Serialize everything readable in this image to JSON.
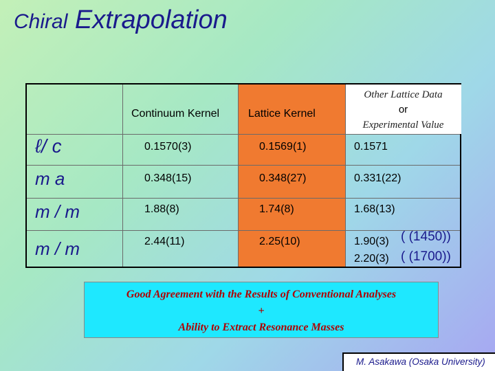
{
  "title": {
    "word1": "Chiral",
    "word2": "Extrapolation"
  },
  "table": {
    "headers": {
      "continuum": "Continuum Kernel",
      "lattice": "Lattice Kernel",
      "other_line1": "Other Lattice Data",
      "other_line2": "or",
      "other_line3": "Experimental Value"
    },
    "row_labels": [
      {
        "text": "ℓ/ c"
      },
      {
        "text": "m a"
      },
      {
        "text": "m / m"
      },
      {
        "text": "m / m"
      }
    ],
    "rows": [
      {
        "continuum": "0.1570(3)",
        "lattice": "0.1569(1)",
        "other": "0.1571"
      },
      {
        "continuum": "0.348(15)",
        "lattice": "0.348(27)",
        "other": "0.331(22)"
      },
      {
        "continuum": "1.88(8)",
        "lattice": "1.74(8)",
        "other": "1.68(13)"
      },
      {
        "continuum": "2.44(11)",
        "lattice": "2.25(10)",
        "other_1": "1.90(3)",
        "other_2": "2.20(3)",
        "extra_1": "( (1450))",
        "extra_2": "( (1700))"
      }
    ]
  },
  "result_box": {
    "line1": "Good Agreement with the Results of Conventional Analyses",
    "line2": "+",
    "line3": "Ability to Extract Resonance Masses"
  },
  "footer": "M. Asakawa (Osaka University)",
  "colors": {
    "title": "#1a1a8c",
    "lattice_column": "#f07a30",
    "result_bg": "#1ee8ff",
    "result_text": "#b00000"
  }
}
